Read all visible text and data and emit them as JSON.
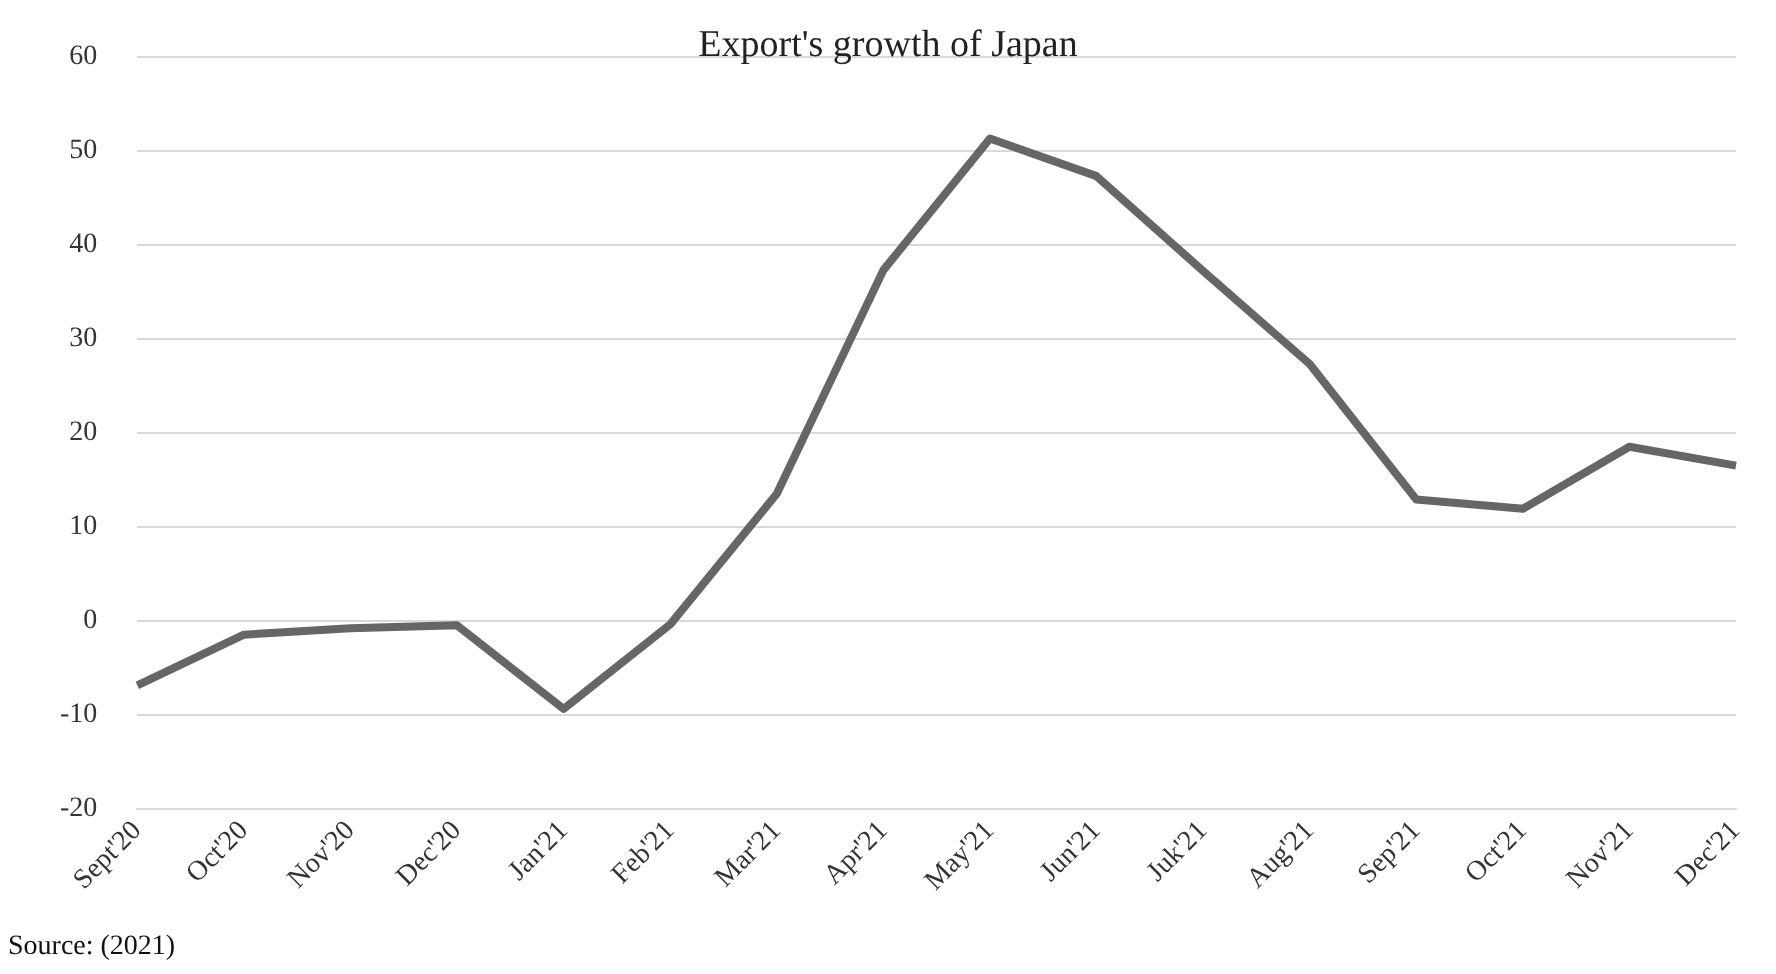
{
  "chart_data": {
    "type": "line",
    "title": "Export's growth of Japan",
    "categories": [
      "Sept'20",
      "Oct'20",
      "Nov'20",
      "Dec'20",
      "Jan'21",
      "Feb'21",
      "Mar'21",
      "Apr'21",
      "May'21",
      "Jun'21",
      "Juk'21",
      "Aug'21",
      "Sep'21",
      "Oct'21",
      "Nov'21",
      "Dec'21"
    ],
    "series": [
      {
        "color": "#666666",
        "values": [
          -6.9,
          -1.5,
          -0.8,
          -0.5,
          -9.4,
          -0.4,
          13.5,
          37.3,
          51.3,
          47.3,
          37.2,
          27.3,
          12.9,
          11.9,
          18.5,
          16.5
        ]
      }
    ],
    "ylim": [
      -20,
      60
    ],
    "yticks": [
      -20,
      -10,
      0,
      10,
      20,
      30,
      40,
      50,
      60
    ],
    "grid": "y",
    "legend": false,
    "marker": "none",
    "line_style": "solid",
    "annotations": [
      "Source: (2021)"
    ]
  }
}
